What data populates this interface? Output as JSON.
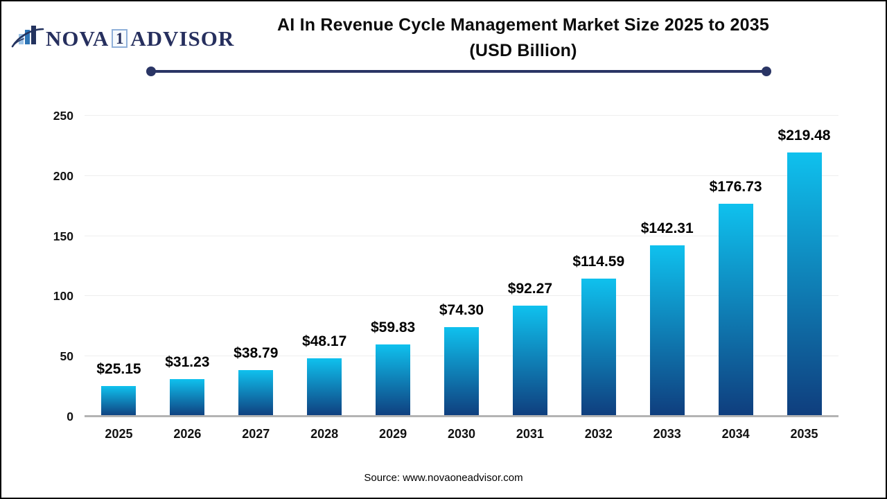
{
  "logo": {
    "brand_prefix": "NOVA",
    "brand_number": "1",
    "brand_suffix": "ADVISOR",
    "navy": "#262f5e",
    "icon_bar_colors": [
      "#9dc3e6",
      "#2e75b6",
      "#24335f"
    ]
  },
  "header": {
    "title_line1": "AI In Revenue Cycle Management Market Size 2025 to 2035",
    "title_line2": "(USD Billion)",
    "divider_color": "#2a3565"
  },
  "chart_data": {
    "type": "bar",
    "title": "AI In Revenue Cycle Management Market Size 2025 to 2035 (USD Billion)",
    "categories": [
      "2025",
      "2026",
      "2027",
      "2028",
      "2029",
      "2030",
      "2031",
      "2032",
      "2033",
      "2034",
      "2035"
    ],
    "values": [
      25.15,
      31.23,
      38.79,
      48.17,
      59.83,
      74.3,
      92.27,
      114.59,
      142.31,
      176.73,
      219.48
    ],
    "value_labels": [
      "$25.15",
      "$31.23",
      "$38.79",
      "$48.17",
      "$59.83",
      "$74.30",
      "$92.27",
      "$114.59",
      "$142.31",
      "$176.73",
      "$219.48"
    ],
    "xlabel": "",
    "ylabel": "",
    "ylim": [
      0,
      250
    ],
    "yticks": [
      0,
      50,
      100,
      150,
      200,
      250
    ],
    "grid": true,
    "legend": false,
    "bar_gradient_top": "#0fc1ee",
    "bar_gradient_bottom": "#0f3d7d"
  },
  "footer": {
    "source": "Source: www.novaoneadvisor.com"
  }
}
